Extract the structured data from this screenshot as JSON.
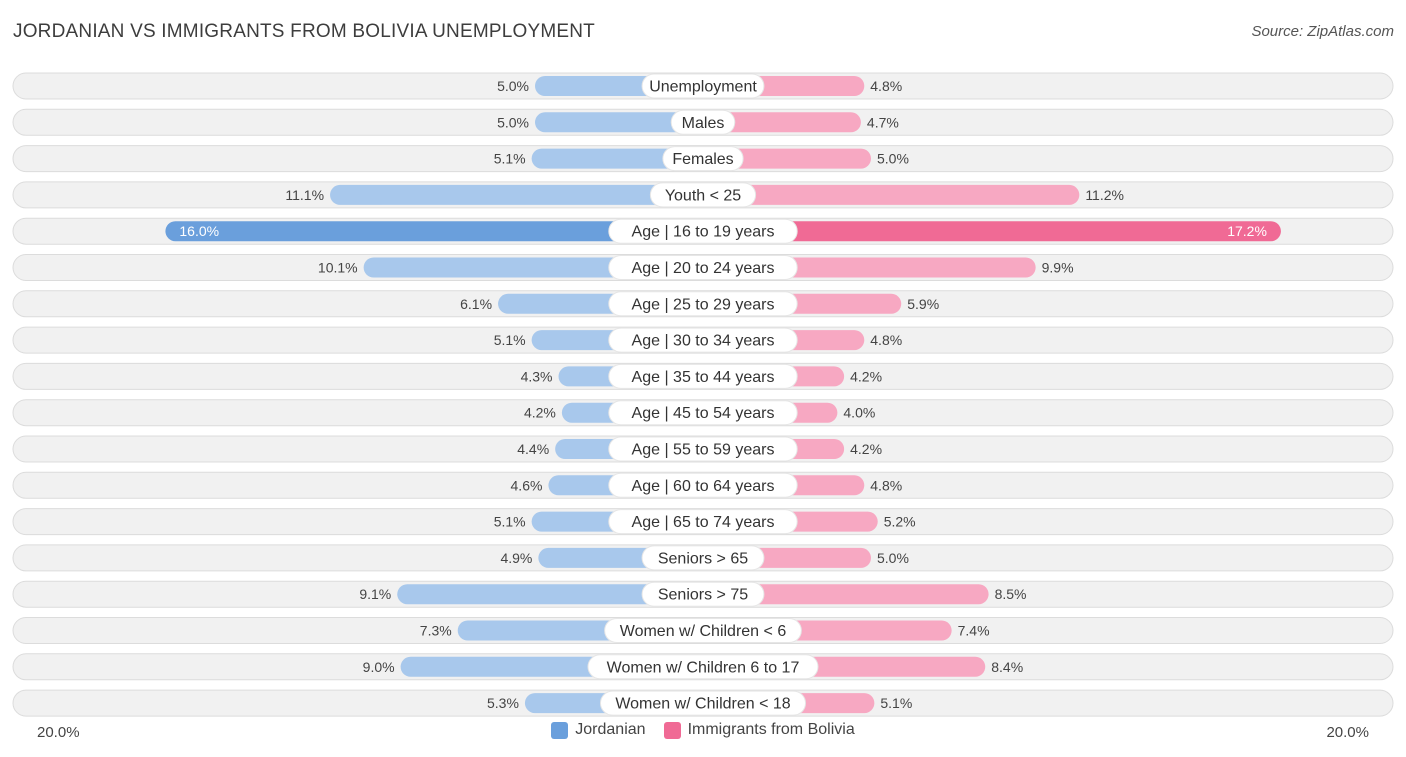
{
  "title": "JORDANIAN VS IMMIGRANTS FROM BOLIVIA UNEMPLOYMENT",
  "source": "Source: ZipAtlas.com",
  "colors": {
    "left_light": "#a8c8ec",
    "left_dark": "#6a9fdc",
    "right_light": "#f7a8c2",
    "right_dark": "#f06a95",
    "track": "#f1f1f1",
    "track_border": "#dcdcdc"
  },
  "axis": {
    "left_label": "20.0%",
    "right_label": "20.0%"
  },
  "legend": {
    "left": {
      "label": "Jordanian",
      "icon": "blue-square-icon"
    },
    "right": {
      "label": "Immigrants from Bolivia",
      "icon": "pink-square-icon"
    }
  },
  "chart_data": {
    "type": "bar",
    "orientation": "horizontal-diverging",
    "title": "JORDANIAN VS IMMIGRANTS FROM BOLIVIA UNEMPLOYMENT",
    "xlim": [
      -20,
      20
    ],
    "categories": [
      "Unemployment",
      "Males",
      "Females",
      "Youth < 25",
      "Age | 16 to 19 years",
      "Age | 20 to 24 years",
      "Age | 25 to 29 years",
      "Age | 30 to 34 years",
      "Age | 35 to 44 years",
      "Age | 45 to 54 years",
      "Age | 55 to 59 years",
      "Age | 60 to 64 years",
      "Age | 65 to 74 years",
      "Seniors > 65",
      "Seniors > 75",
      "Women w/ Children < 6",
      "Women w/ Children 6 to 17",
      "Women w/ Children < 18"
    ],
    "series": [
      {
        "name": "Jordanian",
        "values": [
          5.0,
          5.0,
          5.1,
          11.1,
          16.0,
          10.1,
          6.1,
          5.1,
          4.3,
          4.2,
          4.4,
          4.6,
          5.1,
          4.9,
          9.1,
          7.3,
          9.0,
          5.3
        ],
        "labels": [
          "5.0%",
          "5.0%",
          "5.1%",
          "11.1%",
          "16.0%",
          "10.1%",
          "6.1%",
          "5.1%",
          "4.3%",
          "4.2%",
          "4.4%",
          "4.6%",
          "5.1%",
          "4.9%",
          "9.1%",
          "7.3%",
          "9.0%",
          "5.3%"
        ]
      },
      {
        "name": "Immigrants from Bolivia",
        "values": [
          4.8,
          4.7,
          5.0,
          11.2,
          17.2,
          9.9,
          5.9,
          4.8,
          4.2,
          4.0,
          4.2,
          4.8,
          5.2,
          5.0,
          8.5,
          7.4,
          8.4,
          5.1
        ],
        "labels": [
          "4.8%",
          "4.7%",
          "5.0%",
          "11.2%",
          "17.2%",
          "9.9%",
          "5.9%",
          "4.8%",
          "4.2%",
          "4.0%",
          "4.2%",
          "4.8%",
          "5.2%",
          "5.0%",
          "8.5%",
          "7.4%",
          "8.4%",
          "5.1%"
        ]
      }
    ]
  }
}
